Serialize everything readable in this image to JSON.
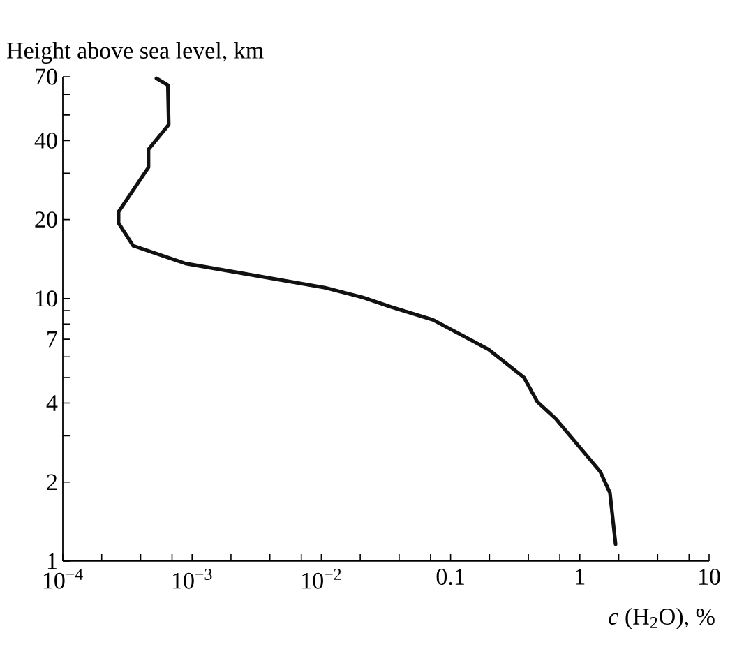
{
  "chart_data": {
    "type": "line",
    "log": "xy",
    "xlabel": "*c* (H$_{2}$O), %",
    "ylabel": "Height above sea level, km",
    "xlim": [
      0.0001,
      10
    ],
    "ylim": [
      1,
      70
    ],
    "xticks": [
      {
        "value": 0.0001,
        "label": "10$^{−4}$"
      },
      {
        "value": 0.0002,
        "label": null
      },
      {
        "value": 0.0004,
        "label": null
      },
      {
        "value": 0.0007,
        "label": null
      },
      {
        "value": 0.001,
        "label": "10$^{−3}$"
      },
      {
        "value": 0.002,
        "label": null
      },
      {
        "value": 0.004,
        "label": null
      },
      {
        "value": 0.007,
        "label": null
      },
      {
        "value": 0.01,
        "label": "10$^{−2}$"
      },
      {
        "value": 0.02,
        "label": null
      },
      {
        "value": 0.04,
        "label": null
      },
      {
        "value": 0.07,
        "label": null
      },
      {
        "value": 0.1,
        "label": "0.1"
      },
      {
        "value": 0.2,
        "label": null
      },
      {
        "value": 0.4,
        "label": null
      },
      {
        "value": 0.7,
        "label": null
      },
      1,
      {
        "value": 2,
        "label": null
      },
      {
        "value": 4,
        "label": null
      },
      {
        "value": 7,
        "label": null
      },
      10
    ],
    "yticks": [
      1,
      2,
      {
        "value": 3,
        "label": null
      },
      4,
      {
        "value": 5,
        "label": null
      },
      {
        "value": 6,
        "label": null
      },
      7,
      {
        "value": 8,
        "label": null
      },
      {
        "value": 9,
        "label": null
      },
      10,
      20,
      {
        "value": 30,
        "label": null
      },
      40,
      {
        "value": 50,
        "label": null
      },
      {
        "value": 60,
        "label": null
      },
      70
    ],
    "series": [
      {
        "color": "#111111",
        "x": [
          0.00053,
          0.00065,
          0.00066,
          0.00046,
          0.00046,
          0.00027,
          0.00027,
          0.00035,
          0.00089,
          0.0024,
          0.0107,
          0.021,
          0.0345,
          0.073,
          0.197,
          0.37,
          0.47,
          0.65,
          1.44,
          1.71,
          1.89
        ],
        "values": [
          69,
          65,
          46,
          37,
          31.6,
          21.4,
          19.4,
          15.9,
          13.6,
          12.5,
          11.0,
          10.1,
          9.3,
          8.3,
          6.4,
          5.0,
          4.04,
          3.49,
          2.19,
          1.82,
          1.16
        ]
      }
    ]
  }
}
